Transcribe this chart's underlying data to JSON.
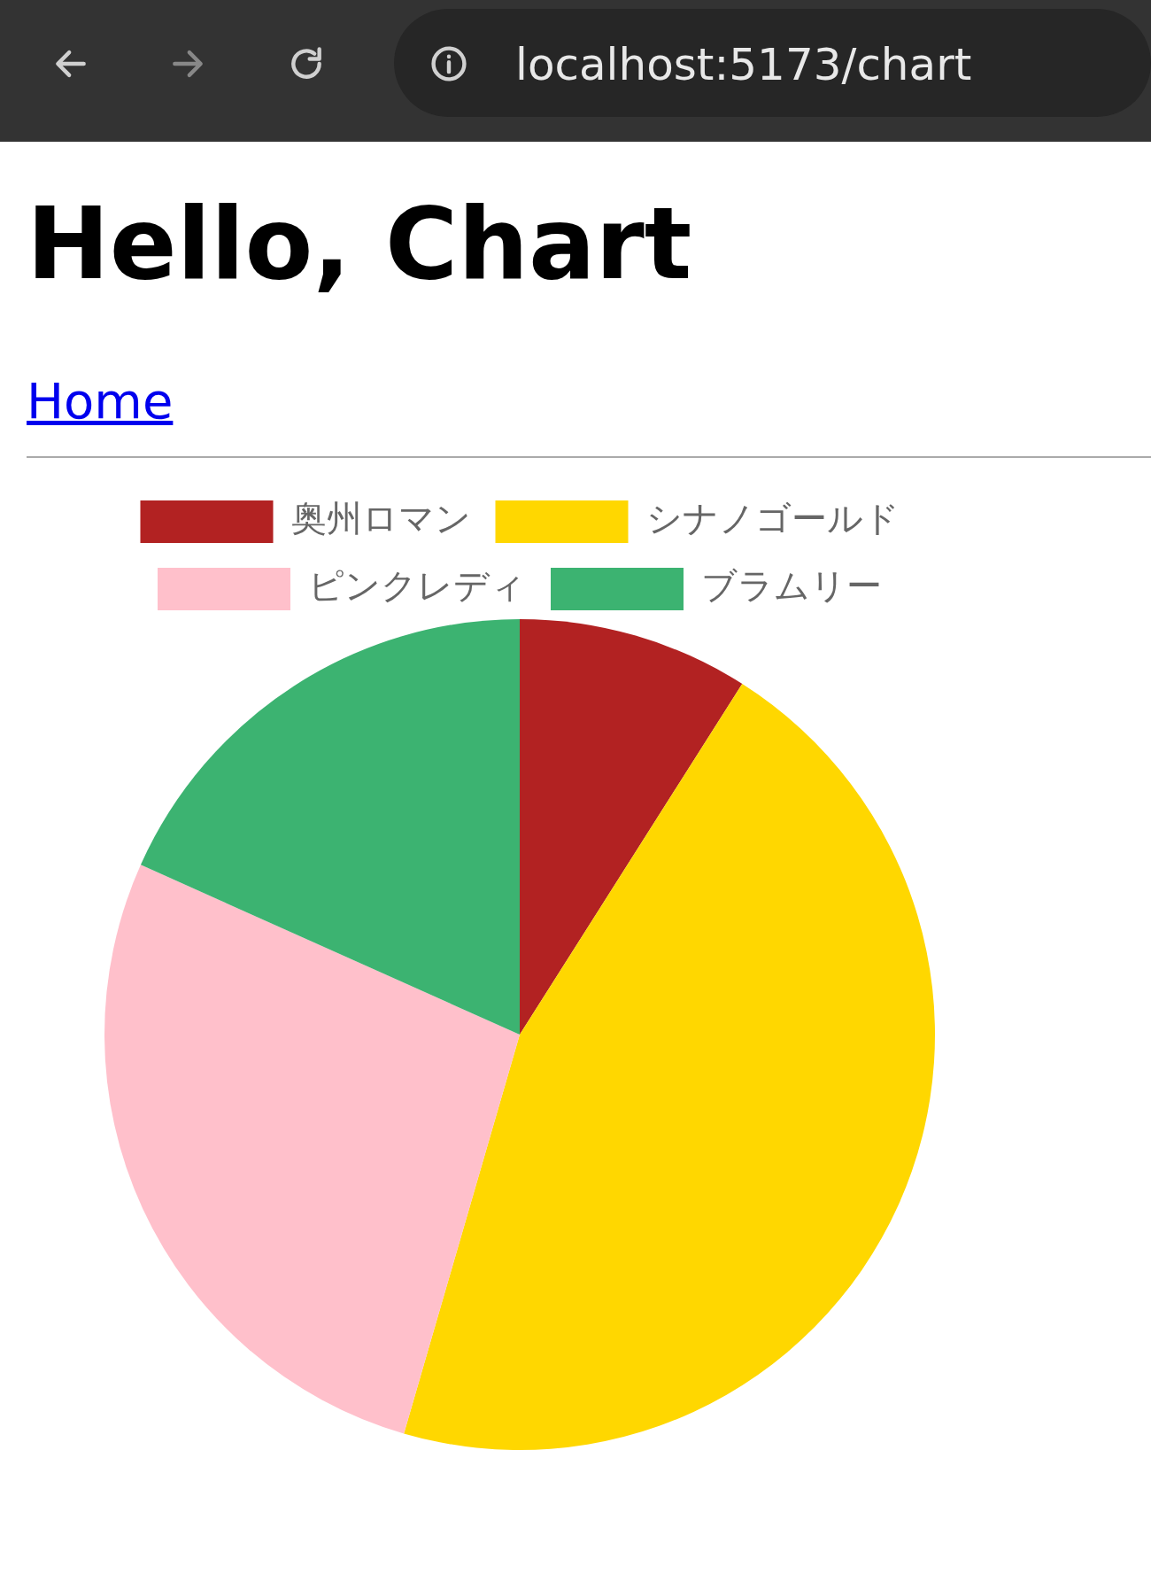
{
  "chart_data": {
    "type": "pie",
    "title": "Hello, Chart",
    "annotations": [
      "localhost:5173/chart",
      "Home"
    ],
    "categories": [
      "奥州ロマン",
      "シナノゴールド",
      "ピンクレディ",
      "ブラムリー"
    ],
    "values": [
      9,
      45.5,
      27.2,
      18.3
    ],
    "colors": [
      "#b22222",
      "#ffd700",
      "#ffc0cb",
      "#3cb371"
    ],
    "legend": "top"
  }
}
